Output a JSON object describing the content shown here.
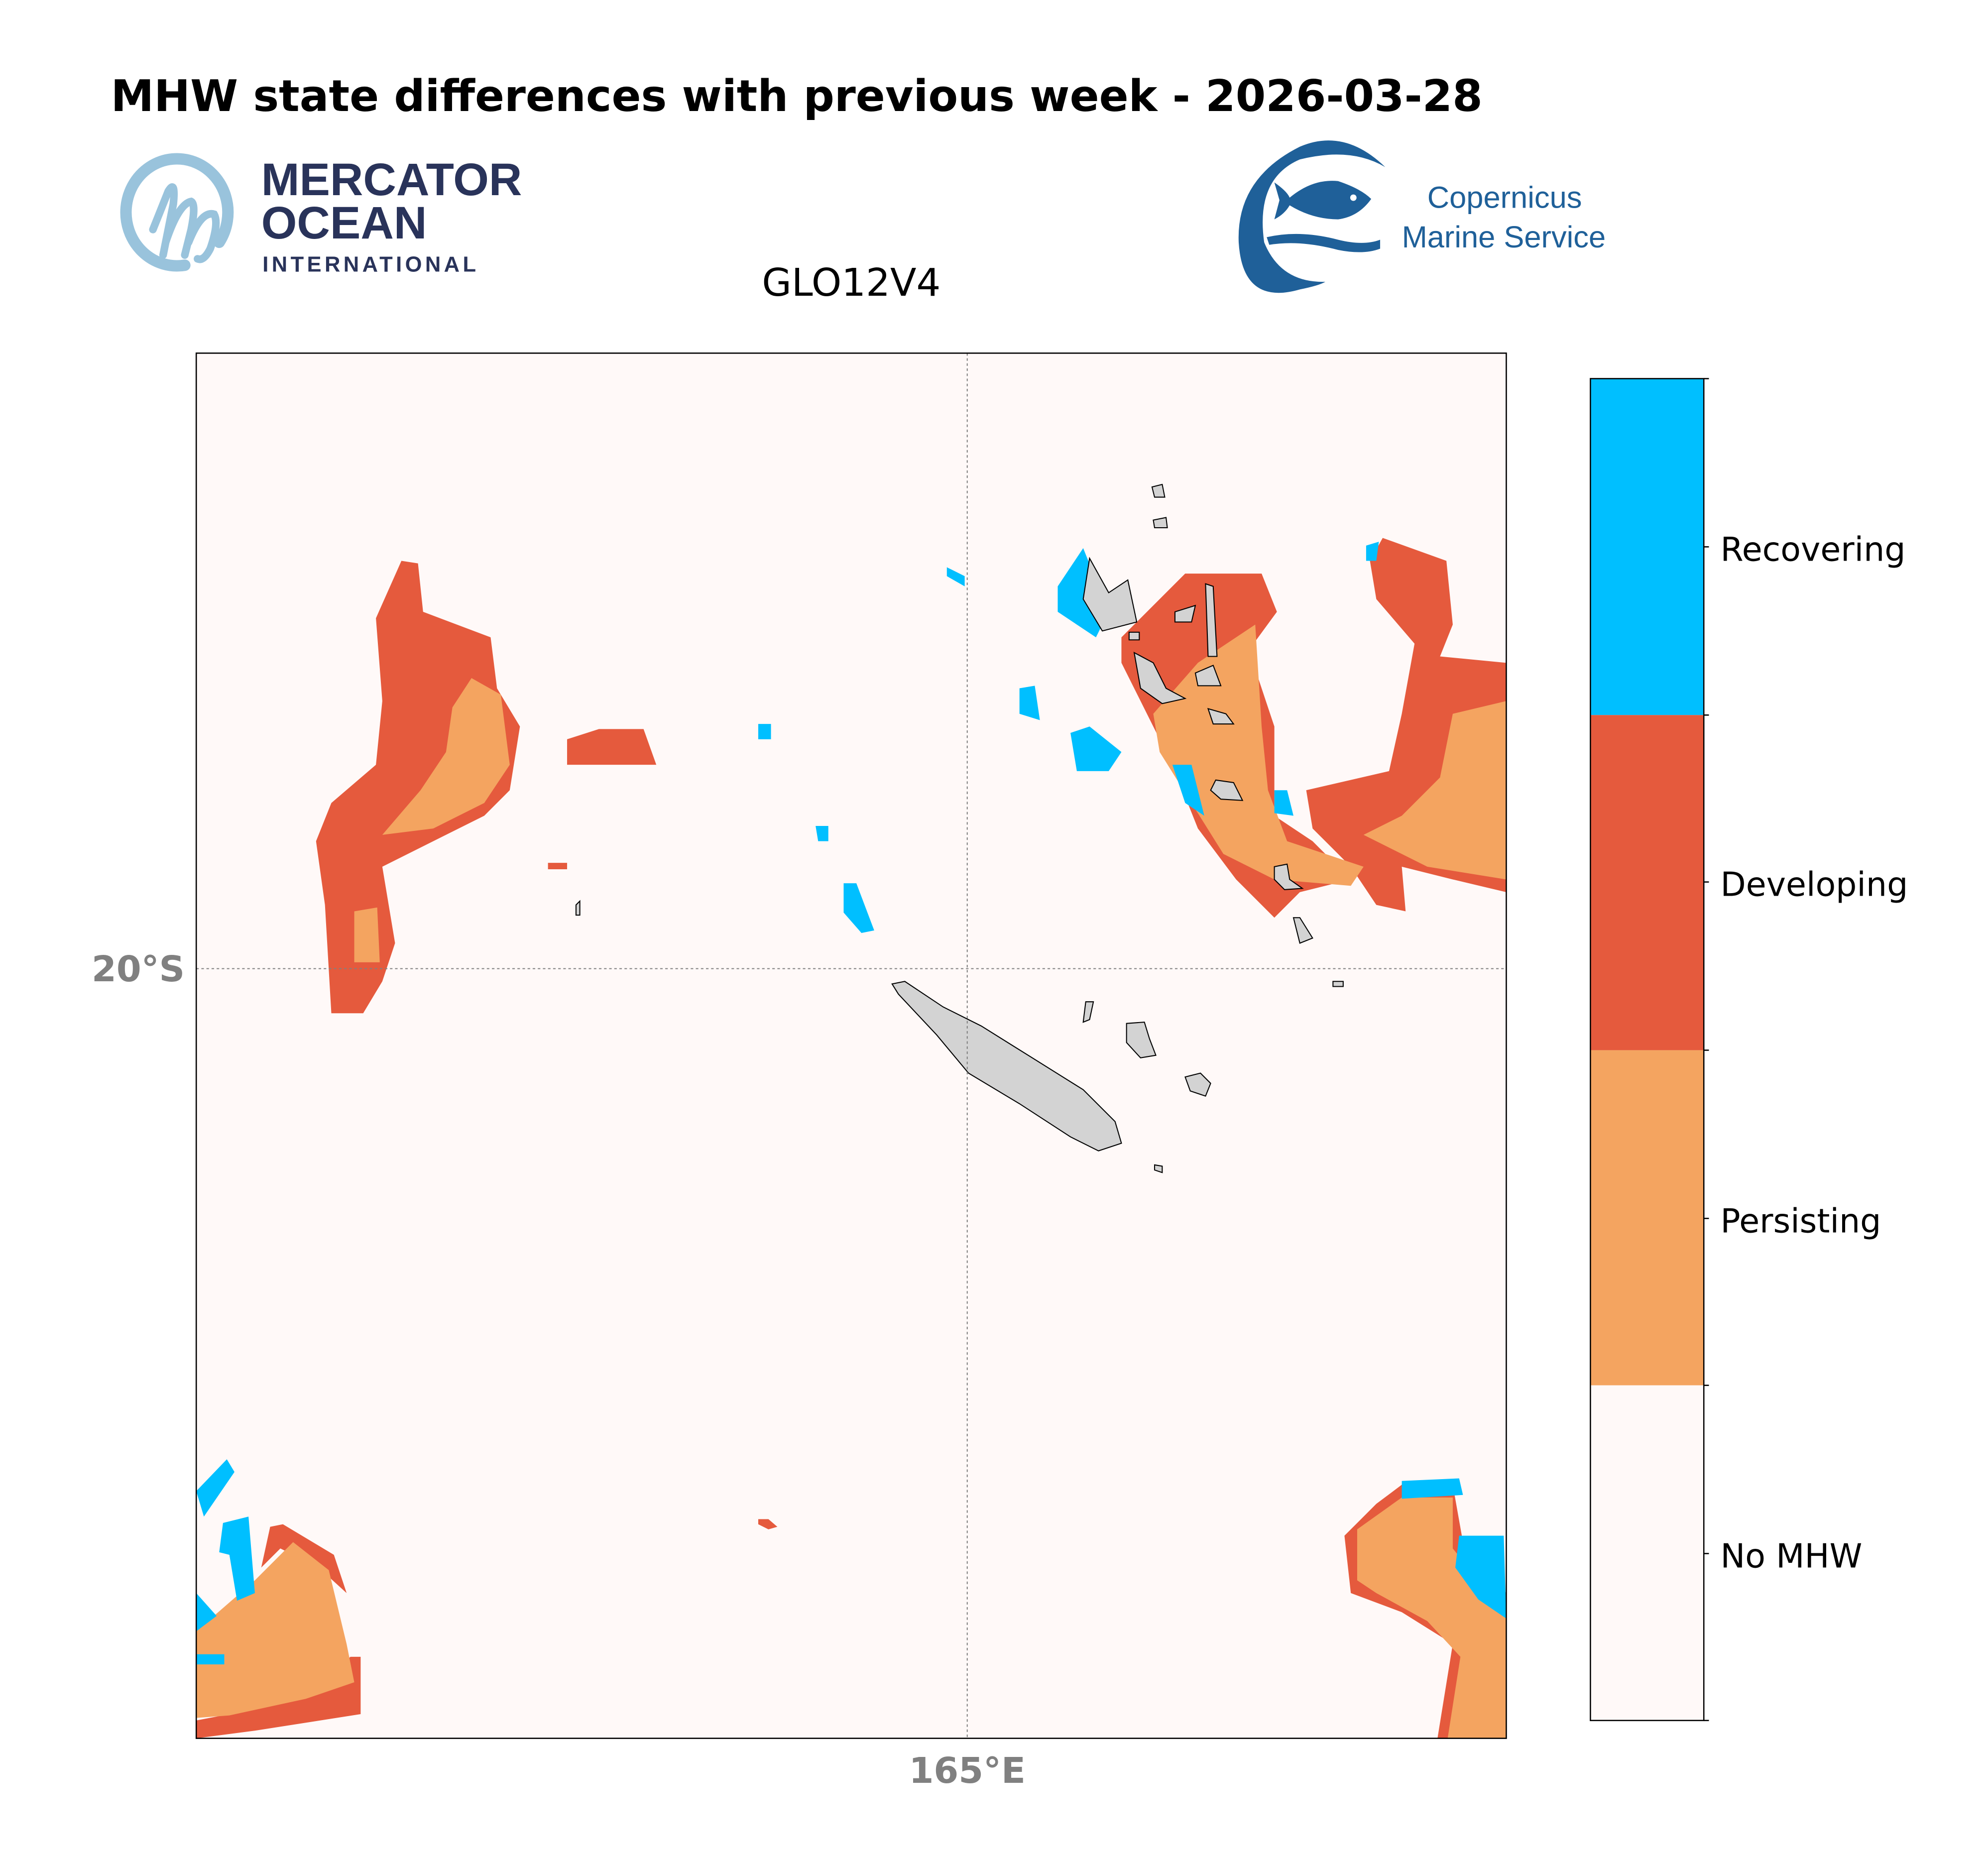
{
  "title": "MHW state differences with previous week - 2026-03-28",
  "subtitle": "GLO12V4",
  "logos": {
    "mercator": {
      "line1": "MERCATOR",
      "line2": "OCEAN",
      "line3": "INTERNATIONAL"
    },
    "copernicus": {
      "line1": "Copernicus",
      "line2": "Marine Service"
    }
  },
  "map": {
    "lat_label": "20°S",
    "lon_label": "165°E",
    "land_color": "#d3d3d3"
  },
  "legend": {
    "items": [
      {
        "label": "Recovering",
        "color": "#00bfff"
      },
      {
        "label": "Developing",
        "color": "#e55a3d"
      },
      {
        "label": "Persisting",
        "color": "#f4a460"
      },
      {
        "label": "No MHW",
        "color": "#fff9f8"
      }
    ]
  },
  "chart_data": {
    "type": "heatmap",
    "title": "MHW state differences with previous week - 2026-03-28",
    "subtitle": "GLO12V4",
    "xlabel": "165°E",
    "ylabel": "20°S",
    "categories": [
      "No MHW",
      "Persisting",
      "Developing",
      "Recovering"
    ],
    "legend_position": "right",
    "grid": true
  }
}
